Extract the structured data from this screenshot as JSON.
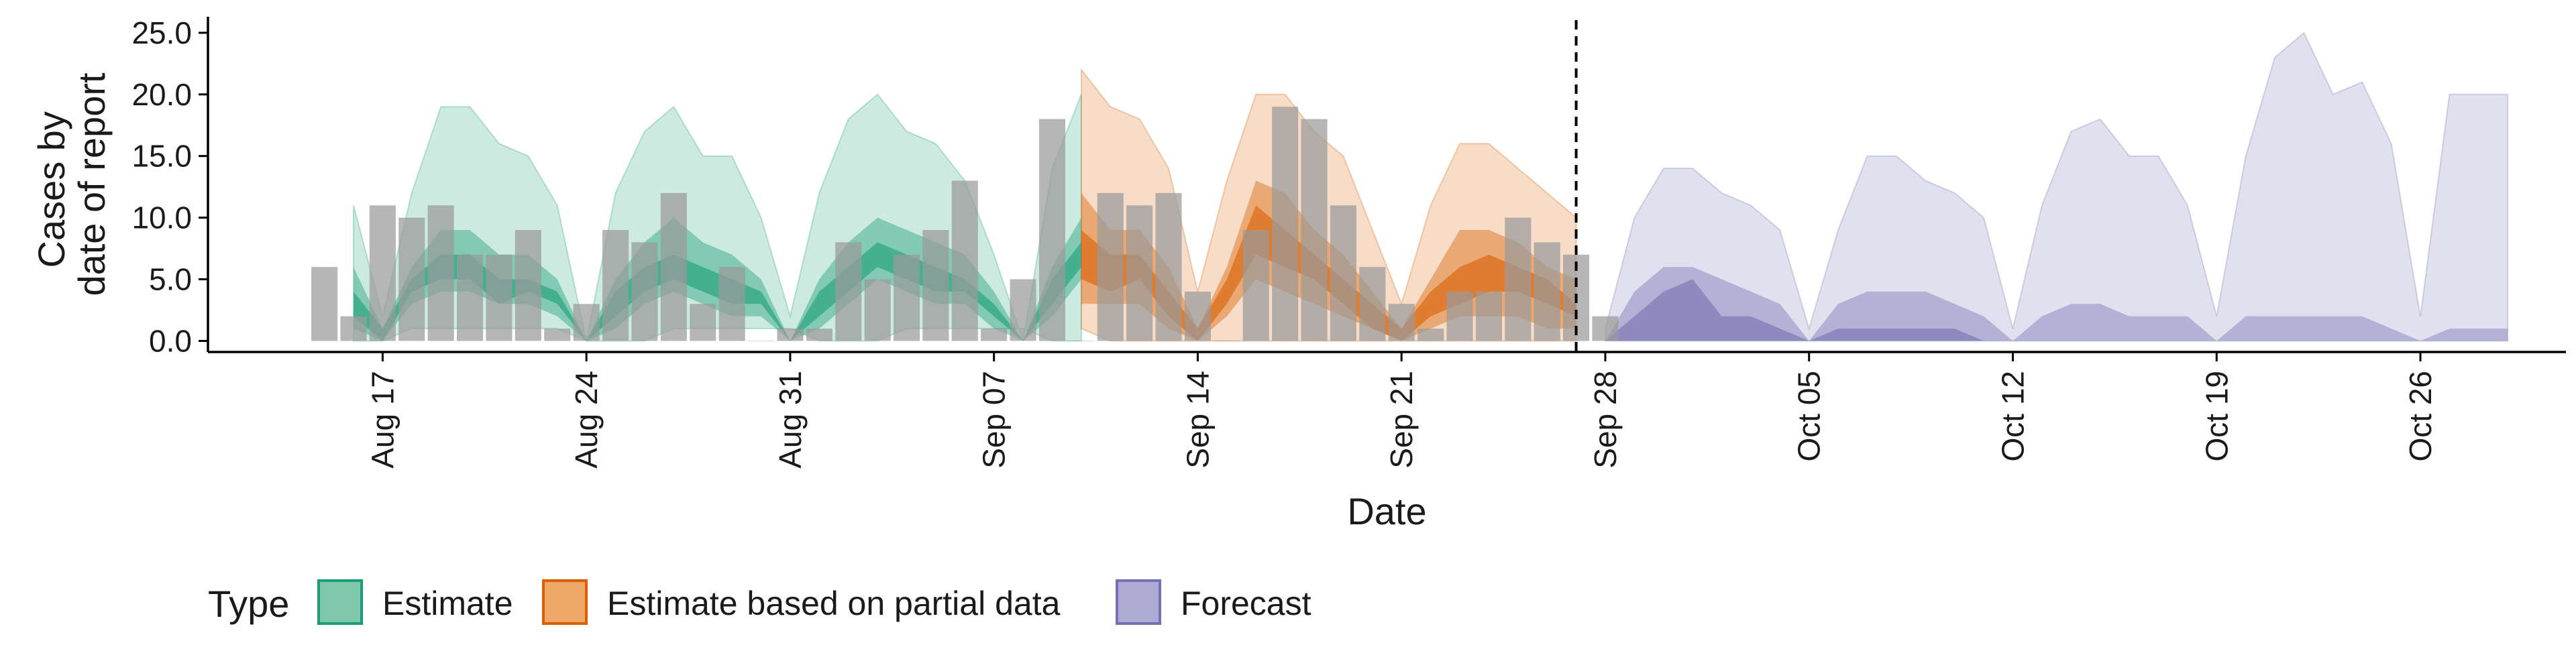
{
  "chart_data": {
    "type": "area",
    "xlabel": "Date",
    "ylabel_lines": [
      "Cases by",
      "date of report"
    ],
    "x_range": [
      "2020-08-11",
      "2020-10-31"
    ],
    "ylim": [
      -0.9,
      26.3
    ],
    "yticks": [
      0,
      5,
      10,
      15,
      20,
      25
    ],
    "ytick_labels": [
      "0.0",
      "5.0",
      "10.0",
      "15.0",
      "20.0",
      "25.0"
    ],
    "x_ticks": [
      {
        "date": "2020-08-17",
        "label": "Aug 17"
      },
      {
        "date": "2020-08-24",
        "label": "Aug 24"
      },
      {
        "date": "2020-08-31",
        "label": "Aug 31"
      },
      {
        "date": "2020-09-07",
        "label": "Sep 07"
      },
      {
        "date": "2020-09-14",
        "label": "Sep 14"
      },
      {
        "date": "2020-09-21",
        "label": "Sep 21"
      },
      {
        "date": "2020-09-28",
        "label": "Sep 28"
      },
      {
        "date": "2020-10-05",
        "label": "Oct 05"
      },
      {
        "date": "2020-10-12",
        "label": "Oct 12"
      },
      {
        "date": "2020-10-19",
        "label": "Oct 19"
      },
      {
        "date": "2020-10-26",
        "label": "Oct 26"
      }
    ],
    "vline_date": "2020-09-27",
    "grid": false,
    "legend": {
      "title": "Type",
      "position": "bottom",
      "entries": [
        {
          "label": "Estimate",
          "fill": "#7FC8AE",
          "stroke": "#1B9E77"
        },
        {
          "label": "Estimate based on partial data",
          "fill": "#EFA868",
          "stroke": "#D95F02"
        },
        {
          "label": "Forecast",
          "fill": "#AEAAD3",
          "stroke": "#7570B3"
        }
      ]
    },
    "colors": {
      "Estimate": "#1B9E77",
      "Estimate based on partial data": "#D95F02",
      "Forecast": "#7570B3",
      "bars": "#9A9A9A",
      "axis": "#000000"
    },
    "observed": {
      "start_date": "2020-08-15",
      "values": [
        6,
        2,
        11,
        10,
        11,
        7,
        7,
        9,
        1,
        3,
        9,
        8,
        12,
        3,
        6,
        0,
        1,
        1,
        8,
        5,
        7,
        9,
        13,
        1,
        5,
        18,
        0,
        12,
        11,
        12,
        4,
        0,
        9,
        19,
        18,
        11,
        6,
        3,
        1,
        4,
        4,
        10,
        8,
        7,
        2
      ]
    },
    "series": [
      {
        "name": "Estimate",
        "start_date": "2020-08-16",
        "outer_lo": [
          0,
          0,
          1,
          1,
          1,
          1,
          1,
          1,
          0,
          0,
          0,
          1,
          1,
          1,
          1,
          1,
          0,
          0,
          0,
          1,
          1,
          1,
          1,
          1,
          0,
          0
        ],
        "outer_hi": [
          11,
          2,
          12,
          19,
          19,
          16,
          15,
          11,
          0,
          12,
          17,
          19,
          15,
          15,
          10,
          2,
          12,
          18,
          20,
          17,
          16,
          13,
          7,
          0,
          14,
          20
        ],
        "mid_lo": [
          1,
          0,
          3,
          4,
          4,
          3,
          3,
          2,
          0,
          1,
          3,
          4,
          3,
          2,
          2,
          0,
          1,
          3,
          5,
          4,
          3,
          3,
          1,
          0,
          2,
          5
        ],
        "mid_hi": [
          6,
          1,
          6,
          9,
          9,
          7,
          7,
          5,
          0,
          5,
          8,
          10,
          8,
          7,
          5,
          0,
          5,
          8,
          10,
          9,
          8,
          7,
          4,
          0,
          6,
          10
        ],
        "inner_lo": [
          2,
          0,
          4,
          5,
          5,
          3,
          4,
          3,
          0,
          2,
          4,
          5,
          4,
          3,
          3,
          0,
          2,
          4,
          6,
          5,
          4,
          4,
          2,
          0,
          3,
          6
        ],
        "inner_hi": [
          4,
          1,
          5,
          7,
          7,
          5,
          5,
          4,
          0,
          4,
          6,
          7,
          6,
          5,
          4,
          0,
          4,
          6,
          8,
          7,
          6,
          5,
          3,
          0,
          5,
          8
        ]
      },
      {
        "name": "Estimate based on partial data",
        "start_date": "2020-09-10",
        "outer_lo": [
          1,
          0,
          0,
          0,
          0,
          0,
          0,
          0,
          0,
          0,
          0,
          0,
          0,
          0,
          0,
          0,
          0,
          0
        ],
        "outer_hi": [
          22,
          19,
          18,
          14,
          4,
          13,
          20,
          20,
          17,
          15,
          9,
          3,
          11,
          16,
          16,
          14,
          12,
          10
        ],
        "mid_lo": [
          3,
          3,
          3,
          1,
          0,
          2,
          5,
          4,
          3,
          2,
          1,
          0,
          1,
          2,
          2,
          2,
          1,
          1
        ],
        "mid_hi": [
          12,
          9,
          9,
          6,
          1,
          6,
          13,
          12,
          9,
          7,
          4,
          1,
          5,
          9,
          9,
          8,
          6,
          5
        ],
        "inner_lo": [
          5,
          4,
          5,
          2,
          0,
          3,
          7,
          6,
          5,
          3,
          1,
          0,
          2,
          3,
          4,
          4,
          3,
          2
        ],
        "inner_hi": [
          9,
          7,
          7,
          4,
          1,
          5,
          11,
          9,
          7,
          5,
          3,
          1,
          4,
          6,
          7,
          6,
          5,
          3
        ]
      },
      {
        "name": "Forecast",
        "start_date": "2020-09-28",
        "outer_lo": [
          0,
          0,
          0,
          0,
          0,
          0,
          0,
          0,
          0,
          0,
          0,
          0,
          0,
          0,
          0,
          0,
          0,
          0,
          0,
          0,
          0,
          0,
          0,
          0,
          0,
          0,
          0,
          0,
          0,
          0,
          0,
          0
        ],
        "outer_hi": [
          1,
          10,
          14,
          14,
          12,
          11,
          9,
          1,
          9,
          15,
          15,
          13,
          12,
          10,
          1,
          11,
          17,
          18,
          15,
          15,
          11,
          2,
          15,
          23,
          25,
          20,
          21,
          16,
          2,
          20,
          20,
          20
        ],
        "mid_lo": [
          0,
          0,
          0,
          0,
          0,
          0,
          0,
          0,
          0,
          0,
          0,
          0,
          0,
          0,
          0,
          0,
          0,
          0,
          0,
          0,
          0,
          0,
          0,
          0,
          0,
          0,
          0,
          0,
          0,
          0,
          0,
          0
        ],
        "mid_hi": [
          0,
          4,
          6,
          6,
          5,
          4,
          3,
          0,
          3,
          4,
          4,
          4,
          3,
          2,
          0,
          2,
          3,
          3,
          2,
          2,
          2,
          0,
          2,
          2,
          2,
          2,
          2,
          1,
          0,
          1,
          1,
          1
        ],
        "inner_lo": [
          0,
          0,
          0,
          0,
          0,
          0,
          0,
          0,
          0,
          0,
          0,
          0,
          0,
          0,
          0,
          0,
          0,
          0,
          0,
          0,
          0,
          0,
          0,
          0,
          0,
          0,
          0,
          0,
          0,
          0,
          0,
          0
        ],
        "inner_hi": [
          0,
          2,
          4,
          5,
          2,
          2,
          1,
          0,
          1,
          1,
          1,
          1,
          1,
          0,
          0,
          0,
          0,
          0,
          0,
          0,
          0,
          0,
          0,
          0,
          0,
          0,
          0,
          0,
          0,
          0,
          0,
          0
        ]
      }
    ]
  }
}
